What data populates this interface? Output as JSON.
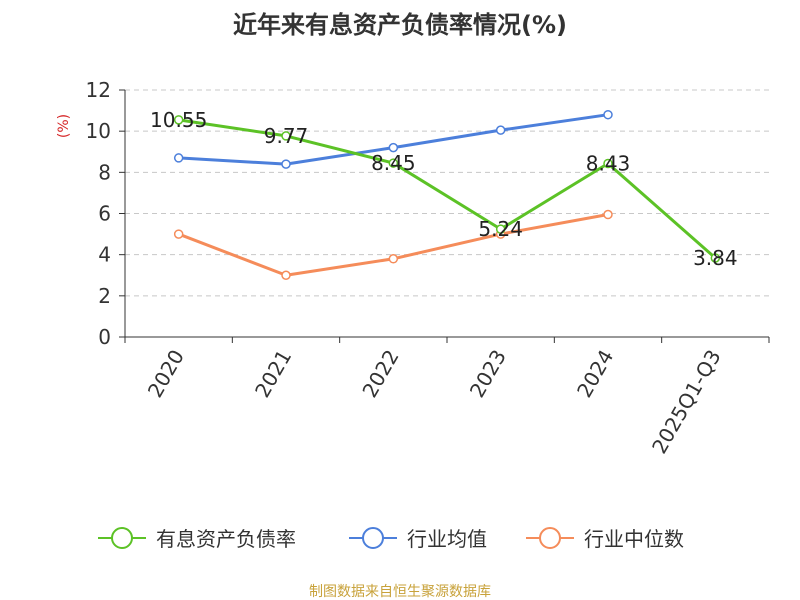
{
  "chart_data": {
    "type": "line",
    "title": "近年来有息资产负债率情况(%)",
    "ylabel": "(%)",
    "xlabel": "",
    "categories": [
      "2020",
      "2021",
      "2022",
      "2023",
      "2024",
      "2025Q1-Q3"
    ],
    "ylim": [
      0,
      12
    ],
    "yticks": [
      0,
      2,
      4,
      6,
      8,
      10,
      12
    ],
    "grid": true,
    "legend_position": "bottom",
    "series": [
      {
        "name": "有息资产负债率",
        "color": "#5cc226",
        "values": [
          10.55,
          9.77,
          8.45,
          5.24,
          8.43,
          3.84
        ],
        "labels": [
          "10.55",
          "9.77",
          "8.45",
          "5.24",
          "8.43",
          "3.84"
        ]
      },
      {
        "name": "行业均值",
        "color": "#4c7fdb",
        "values": [
          8.7,
          8.4,
          9.2,
          10.05,
          10.8,
          null
        ]
      },
      {
        "name": "行业中位数",
        "color": "#f58c5a",
        "values": [
          5.0,
          3.0,
          3.8,
          5.0,
          5.95,
          null
        ]
      }
    ]
  },
  "source_text": "制图数据来自恒生聚源数据库"
}
